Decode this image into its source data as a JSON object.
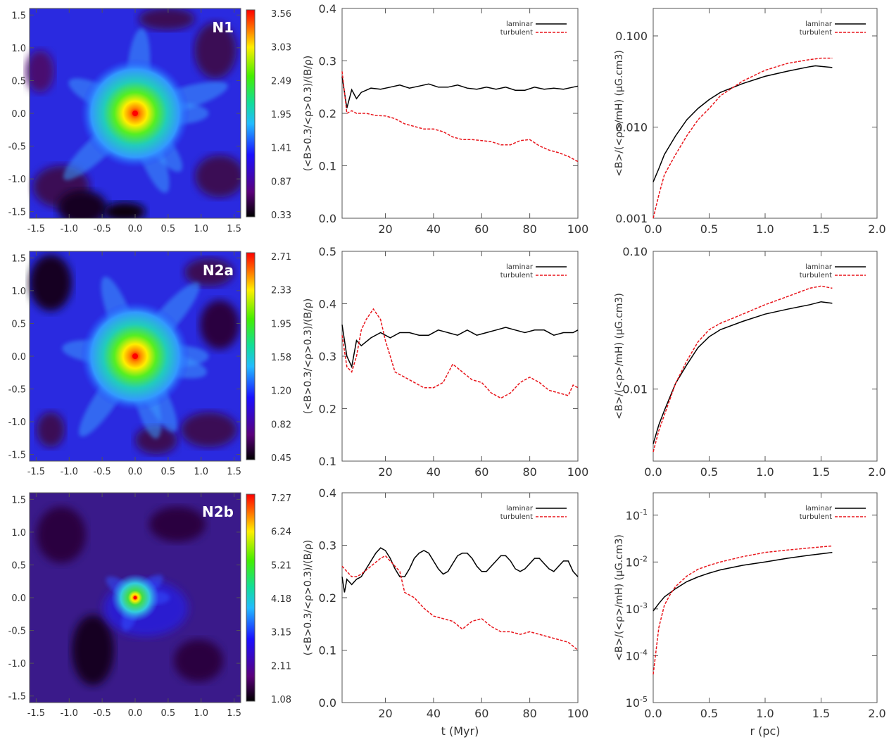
{
  "panel_labels": [
    "N1",
    "N2a",
    "N2b"
  ],
  "chart_data": [
    {
      "type": "heatmap",
      "id": "map-n1",
      "label": "N1",
      "xlim": [
        -1.6,
        1.6
      ],
      "ylim": [
        -1.6,
        1.6
      ],
      "xticks": [
        "-1.5",
        "-1.0",
        "-0.5",
        "0.0",
        "0.5",
        "1.0",
        "1.5"
      ],
      "yticks": [
        "1.5",
        "1.0",
        "0.5",
        "0.0",
        "-0.5",
        "-1.0",
        "-1.5"
      ],
      "colorbar_ticks": [
        "3.56",
        "3.03",
        "2.49",
        "1.95",
        "1.41",
        "0.87",
        "0.33"
      ]
    },
    {
      "type": "line",
      "id": "ratio-n1",
      "ylabel": "(<B>0.3/<ρ>0.3)/(B/ρ)",
      "xlabel": "",
      "xlim": [
        2,
        100
      ],
      "ylim": [
        0,
        0.4
      ],
      "yscale": "linear",
      "xticks": [
        "20",
        "40",
        "60",
        "80",
        "100"
      ],
      "yticks": [
        "0.0",
        "0.1",
        "0.2",
        "0.3",
        "0.4"
      ],
      "series": [
        {
          "name": "laminar",
          "style": "solid",
          "color": "#000000",
          "x": [
            2,
            4,
            6,
            8,
            10,
            14,
            18,
            22,
            26,
            30,
            34,
            38,
            42,
            46,
            50,
            54,
            58,
            62,
            66,
            70,
            74,
            78,
            82,
            86,
            90,
            94,
            98,
            100
          ],
          "y": [
            0.27,
            0.21,
            0.245,
            0.228,
            0.24,
            0.248,
            0.246,
            0.25,
            0.254,
            0.248,
            0.252,
            0.256,
            0.25,
            0.25,
            0.254,
            0.248,
            0.246,
            0.25,
            0.246,
            0.25,
            0.244,
            0.244,
            0.25,
            0.246,
            0.248,
            0.246,
            0.25,
            0.252
          ]
        },
        {
          "name": "turbulent",
          "style": "dashed",
          "color": "#e8151b",
          "x": [
            2,
            4,
            6,
            8,
            12,
            16,
            20,
            24,
            28,
            32,
            36,
            40,
            44,
            48,
            52,
            56,
            60,
            64,
            68,
            72,
            76,
            80,
            84,
            88,
            92,
            96,
            100
          ],
          "y": [
            0.28,
            0.2,
            0.205,
            0.2,
            0.2,
            0.196,
            0.195,
            0.19,
            0.18,
            0.175,
            0.17,
            0.17,
            0.165,
            0.155,
            0.15,
            0.15,
            0.148,
            0.146,
            0.14,
            0.14,
            0.148,
            0.15,
            0.138,
            0.13,
            0.125,
            0.118,
            0.108
          ]
        }
      ]
    },
    {
      "type": "line",
      "id": "profile-n1",
      "ylabel": "<B>/(<ρ>/mH) (μG.cm3)",
      "xlabel": "",
      "xlim": [
        0,
        2
      ],
      "ylim": [
        0.001,
        0.2
      ],
      "yscale": "log",
      "xticks": [
        "0.0",
        "0.5",
        "1.0",
        "1.5",
        "2.0"
      ],
      "yticks": [
        "0.100",
        "0.010",
        "0.001"
      ],
      "series": [
        {
          "name": "laminar",
          "style": "solid",
          "color": "#000000",
          "x": [
            0.0,
            0.05,
            0.1,
            0.2,
            0.3,
            0.4,
            0.5,
            0.6,
            0.8,
            1.0,
            1.2,
            1.4,
            1.45,
            1.6
          ],
          "y": [
            0.0025,
            0.0035,
            0.005,
            0.008,
            0.012,
            0.016,
            0.02,
            0.024,
            0.03,
            0.036,
            0.041,
            0.046,
            0.047,
            0.045
          ]
        },
        {
          "name": "turbulent",
          "style": "dashed",
          "color": "#e8151b",
          "x": [
            0.0,
            0.05,
            0.1,
            0.2,
            0.3,
            0.4,
            0.5,
            0.6,
            0.8,
            1.0,
            1.2,
            1.4,
            1.5,
            1.6
          ],
          "y": [
            0.001,
            0.0018,
            0.003,
            0.005,
            0.008,
            0.012,
            0.016,
            0.022,
            0.032,
            0.042,
            0.05,
            0.055,
            0.057,
            0.057
          ]
        }
      ]
    },
    {
      "type": "heatmap",
      "id": "map-n2a",
      "label": "N2a",
      "xlim": [
        -1.6,
        1.6
      ],
      "ylim": [
        -1.6,
        1.6
      ],
      "xticks": [
        "-1.5",
        "-1.0",
        "-0.5",
        "0.0",
        "0.5",
        "1.0",
        "1.5"
      ],
      "yticks": [
        "1.5",
        "1.0",
        "0.5",
        "0.0",
        "-0.5",
        "-1.0",
        "-1.5"
      ],
      "colorbar_ticks": [
        "2.71",
        "2.33",
        "1.95",
        "1.58",
        "1.20",
        "0.82",
        "0.45"
      ]
    },
    {
      "type": "line",
      "id": "ratio-n2a",
      "ylabel": "(<B>0.3/<ρ>0.3)/(B/ρ)",
      "xlabel": "",
      "xlim": [
        2,
        100
      ],
      "ylim": [
        0.1,
        0.5
      ],
      "yscale": "linear",
      "xticks": [
        "20",
        "40",
        "60",
        "80",
        "100"
      ],
      "yticks": [
        "0.1",
        "0.2",
        "0.3",
        "0.4",
        "0.5"
      ],
      "series": [
        {
          "name": "laminar",
          "style": "solid",
          "color": "#000000",
          "x": [
            2,
            4,
            6,
            8,
            10,
            14,
            18,
            22,
            26,
            30,
            34,
            38,
            42,
            46,
            50,
            54,
            58,
            62,
            66,
            70,
            74,
            78,
            82,
            86,
            90,
            94,
            98,
            100
          ],
          "y": [
            0.36,
            0.3,
            0.28,
            0.33,
            0.32,
            0.335,
            0.345,
            0.335,
            0.345,
            0.345,
            0.34,
            0.34,
            0.35,
            0.345,
            0.34,
            0.35,
            0.34,
            0.345,
            0.35,
            0.355,
            0.35,
            0.345,
            0.35,
            0.35,
            0.34,
            0.345,
            0.345,
            0.35
          ]
        },
        {
          "name": "turbulent",
          "style": "dashed",
          "color": "#e8151b",
          "x": [
            2,
            4,
            6,
            8,
            10,
            12,
            15,
            18,
            20,
            22,
            24,
            28,
            32,
            36,
            40,
            44,
            48,
            52,
            56,
            60,
            64,
            68,
            72,
            76,
            80,
            84,
            88,
            92,
            96,
            98,
            100
          ],
          "y": [
            0.34,
            0.28,
            0.27,
            0.3,
            0.35,
            0.37,
            0.39,
            0.37,
            0.33,
            0.3,
            0.27,
            0.26,
            0.25,
            0.24,
            0.24,
            0.25,
            0.285,
            0.27,
            0.255,
            0.25,
            0.23,
            0.22,
            0.23,
            0.25,
            0.26,
            0.25,
            0.235,
            0.23,
            0.225,
            0.245,
            0.24
          ]
        }
      ]
    },
    {
      "type": "line",
      "id": "profile-n2a",
      "ylabel": "<B>/(<ρ>/mH) (μG.cm3)",
      "xlabel": "",
      "xlim": [
        0,
        2
      ],
      "ylim": [
        0.003,
        0.1
      ],
      "yscale": "log",
      "xticks": [
        "0.0",
        "0.5",
        "1.0",
        "1.5",
        "2.0"
      ],
      "yticks": [
        "0.10",
        "0.01"
      ],
      "series": [
        {
          "name": "laminar",
          "style": "solid",
          "color": "#000000",
          "x": [
            0.0,
            0.05,
            0.1,
            0.2,
            0.3,
            0.4,
            0.5,
            0.6,
            0.8,
            1.0,
            1.2,
            1.4,
            1.5,
            1.6
          ],
          "y": [
            0.004,
            0.0055,
            0.007,
            0.011,
            0.015,
            0.02,
            0.024,
            0.027,
            0.031,
            0.035,
            0.038,
            0.041,
            0.043,
            0.042
          ]
        },
        {
          "name": "turbulent",
          "style": "dashed",
          "color": "#e8151b",
          "x": [
            0.0,
            0.05,
            0.1,
            0.2,
            0.3,
            0.4,
            0.5,
            0.6,
            0.8,
            1.0,
            1.2,
            1.4,
            1.5,
            1.6
          ],
          "y": [
            0.0035,
            0.005,
            0.0065,
            0.011,
            0.016,
            0.022,
            0.027,
            0.03,
            0.035,
            0.041,
            0.047,
            0.054,
            0.056,
            0.054
          ]
        }
      ]
    },
    {
      "type": "heatmap",
      "id": "map-n2b",
      "label": "N2b",
      "xlim": [
        -1.6,
        1.6
      ],
      "ylim": [
        -1.6,
        1.6
      ],
      "xticks": [
        "-1.5",
        "-1.0",
        "-0.5",
        "0.0",
        "0.5",
        "1.0",
        "1.5"
      ],
      "yticks": [
        "1.5",
        "1.0",
        "0.5",
        "0.0",
        "-0.5",
        "-1.0",
        "-1.5"
      ],
      "colorbar_ticks": [
        "7.27",
        "6.24",
        "5.21",
        "4.18",
        "3.15",
        "2.11",
        "1.08"
      ]
    },
    {
      "type": "line",
      "id": "ratio-n2b",
      "ylabel": "(<B>0.3/<ρ>0.3)/(B/ρ)",
      "xlabel": "t (Myr)",
      "xlim": [
        2,
        100
      ],
      "ylim": [
        0,
        0.4
      ],
      "yscale": "linear",
      "xticks": [
        "20",
        "40",
        "60",
        "80",
        "100"
      ],
      "yticks": [
        "0.0",
        "0.1",
        "0.2",
        "0.3",
        "0.4"
      ],
      "series": [
        {
          "name": "laminar",
          "style": "solid",
          "color": "#000000",
          "x": [
            2,
            3,
            4,
            5,
            6,
            8,
            10,
            12,
            14,
            16,
            18,
            20,
            22,
            24,
            26,
            28,
            30,
            32,
            34,
            36,
            38,
            40,
            42,
            44,
            46,
            48,
            50,
            52,
            54,
            56,
            58,
            60,
            62,
            64,
            66,
            68,
            70,
            72,
            74,
            76,
            78,
            80,
            82,
            84,
            86,
            88,
            90,
            92,
            94,
            96,
            98,
            100
          ],
          "y": [
            0.24,
            0.21,
            0.235,
            0.23,
            0.225,
            0.235,
            0.24,
            0.255,
            0.27,
            0.285,
            0.295,
            0.29,
            0.275,
            0.255,
            0.24,
            0.24,
            0.255,
            0.275,
            0.285,
            0.29,
            0.285,
            0.27,
            0.255,
            0.245,
            0.25,
            0.265,
            0.28,
            0.285,
            0.285,
            0.275,
            0.26,
            0.25,
            0.25,
            0.26,
            0.27,
            0.28,
            0.28,
            0.27,
            0.255,
            0.25,
            0.255,
            0.265,
            0.275,
            0.275,
            0.265,
            0.255,
            0.25,
            0.26,
            0.27,
            0.27,
            0.25,
            0.24
          ]
        },
        {
          "name": "turbulent",
          "style": "dashed",
          "color": "#e8151b",
          "x": [
            2,
            4,
            6,
            8,
            10,
            14,
            18,
            20,
            22,
            26,
            28,
            32,
            36,
            40,
            44,
            48,
            52,
            56,
            60,
            64,
            68,
            72,
            76,
            80,
            84,
            88,
            92,
            96,
            100
          ],
          "y": [
            0.26,
            0.25,
            0.24,
            0.24,
            0.245,
            0.26,
            0.275,
            0.28,
            0.27,
            0.25,
            0.21,
            0.2,
            0.18,
            0.165,
            0.16,
            0.155,
            0.14,
            0.155,
            0.16,
            0.145,
            0.135,
            0.135,
            0.13,
            0.135,
            0.13,
            0.125,
            0.12,
            0.115,
            0.1
          ]
        }
      ]
    },
    {
      "type": "line",
      "id": "profile-n2b",
      "ylabel": "<B>/(<ρ>/mH) (μG.cm3)",
      "xlabel": "r (pc)",
      "xlim": [
        0,
        2
      ],
      "ylim": [
        1e-05,
        0.3
      ],
      "yscale": "log",
      "xticks": [
        "0.0",
        "0.5",
        "1.0",
        "1.5",
        "2.0"
      ],
      "yticks": [
        "10-1",
        "10-2",
        "10-3",
        "10-4",
        "10-5"
      ],
      "series": [
        {
          "name": "laminar",
          "style": "solid",
          "color": "#000000",
          "x": [
            0.0,
            0.05,
            0.1,
            0.2,
            0.3,
            0.4,
            0.5,
            0.6,
            0.8,
            1.0,
            1.2,
            1.4,
            1.6
          ],
          "y": [
            0.0009,
            0.0013,
            0.0018,
            0.0027,
            0.0038,
            0.0048,
            0.0058,
            0.0068,
            0.0085,
            0.01,
            0.012,
            0.014,
            0.016
          ]
        },
        {
          "name": "turbulent",
          "style": "dashed",
          "color": "#e8151b",
          "x": [
            0.0,
            0.02,
            0.05,
            0.1,
            0.15,
            0.2,
            0.3,
            0.4,
            0.5,
            0.6,
            0.8,
            1.0,
            1.2,
            1.4,
            1.6
          ],
          "y": [
            4e-05,
            0.0001,
            0.0004,
            0.0012,
            0.002,
            0.003,
            0.005,
            0.007,
            0.0085,
            0.01,
            0.013,
            0.016,
            0.018,
            0.02,
            0.022
          ]
        }
      ]
    }
  ]
}
